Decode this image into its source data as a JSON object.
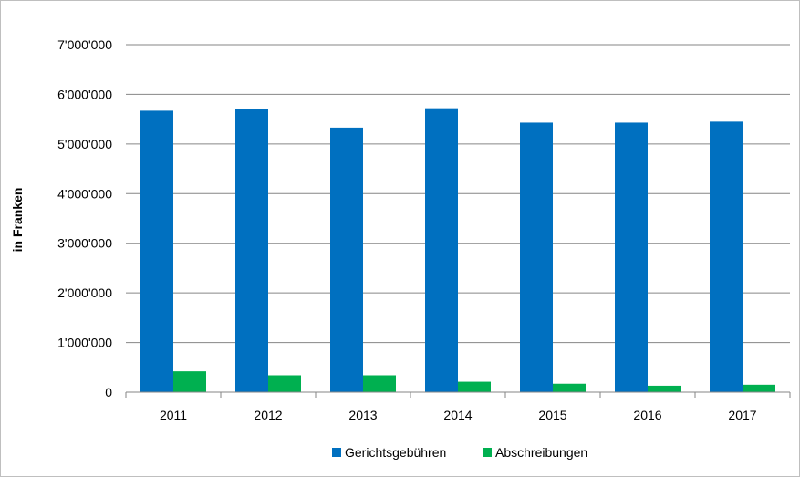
{
  "chart_data": {
    "type": "bar",
    "categories": [
      "2011",
      "2012",
      "2013",
      "2014",
      "2015",
      "2016",
      "2017"
    ],
    "series": [
      {
        "name": "Gerichtsgebühren",
        "color": "#0070c0",
        "values": [
          5670000,
          5700000,
          5330000,
          5720000,
          5430000,
          5430000,
          5450000
        ]
      },
      {
        "name": "Abschreibungen",
        "color": "#00b050",
        "values": [
          420000,
          340000,
          340000,
          210000,
          170000,
          130000,
          150000
        ]
      }
    ],
    "ylabel": "in Franken",
    "ylim": [
      0,
      7000000
    ],
    "yticks": [
      0,
      1000000,
      2000000,
      3000000,
      4000000,
      5000000,
      6000000,
      7000000
    ],
    "ytick_labels": [
      "0",
      "1'000'000",
      "2'000'000",
      "3'000'000",
      "4'000'000",
      "5'000'000",
      "6'000'000",
      "7'000'000"
    ],
    "grid": true,
    "legend": "bottom"
  }
}
